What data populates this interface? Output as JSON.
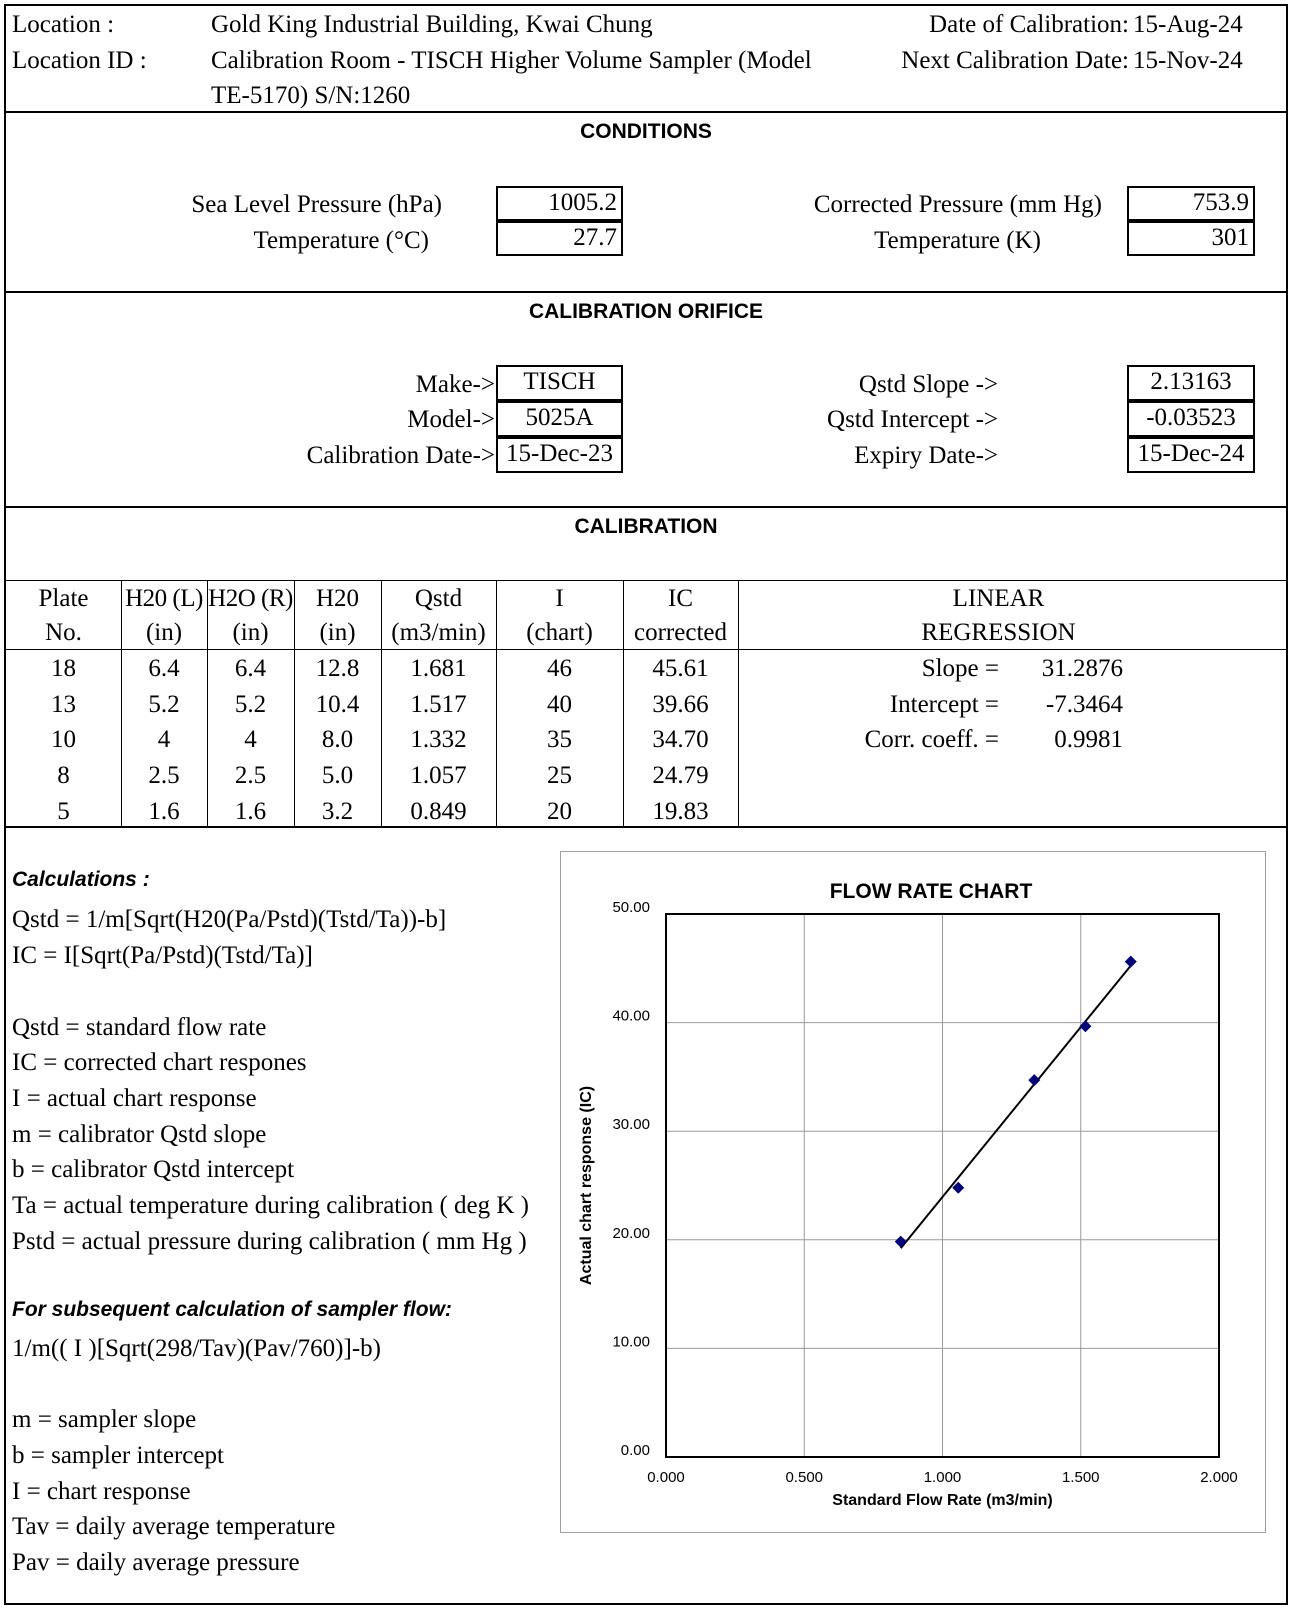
{
  "header": {
    "location_label": "Location :",
    "location_value": "Gold King Industrial Building, Kwai Chung",
    "location_id_label": "Location ID :",
    "location_id_value_line1": "Calibration Room - TISCH Higher Volume Sampler (Model",
    "location_id_value_line2": "TE-5170) S/N:1260",
    "date_label": "Date of Calibration:",
    "date_value": "15-Aug-24",
    "next_label": "Next Calibration Date:",
    "next_value": "15-Nov-24"
  },
  "conditions": {
    "title": "CONDITIONS",
    "slp_label": "Sea Level Pressure (hPa)",
    "slp_value": "1005.2",
    "temp_c_label": "Temperature  (°C)",
    "temp_c_value": "27.7",
    "corr_p_label": "Corrected Pressure (mm Hg)",
    "corr_p_value": "753.9",
    "temp_k_label": "Temperature (K)",
    "temp_k_value": "301"
  },
  "orifice": {
    "title": "CALIBRATION ORIFICE",
    "make_label": "Make->",
    "make_value": "TISCH",
    "model_label": "Model->",
    "model_value": "5025A",
    "cal_date_label": "Calibration Date->",
    "cal_date_value": "15-Dec-23",
    "slope_label": "Qstd Slope ->",
    "slope_value": "2.13163",
    "intercept_label": "Qstd Intercept ->",
    "intercept_value": "-0.03523",
    "expiry_label": "Expiry Date->",
    "expiry_value": "15-Dec-24"
  },
  "calibration": {
    "title": "CALIBRATION",
    "headers": [
      [
        "Plate",
        "No."
      ],
      [
        "H20 (L)",
        "(in)"
      ],
      [
        "H2O (R)",
        "(in)"
      ],
      [
        "H20",
        "(in)"
      ],
      [
        "Qstd",
        "(m3/min)"
      ],
      [
        "I",
        "(chart)"
      ],
      [
        "IC",
        "corrected"
      ]
    ],
    "rows": [
      [
        "18",
        "6.4",
        "6.4",
        "12.8",
        "1.681",
        "46",
        "45.61"
      ],
      [
        "13",
        "5.2",
        "5.2",
        "10.4",
        "1.517",
        "40",
        "39.66"
      ],
      [
        "10",
        "4",
        "4",
        "8.0",
        "1.332",
        "35",
        "34.70"
      ],
      [
        "8",
        "2.5",
        "2.5",
        "5.0",
        "1.057",
        "25",
        "24.79"
      ],
      [
        "5",
        "1.6",
        "1.6",
        "3.2",
        "0.849",
        "20",
        "19.83"
      ]
    ],
    "regression": {
      "header_line1": "LINEAR",
      "header_line2": "REGRESSION",
      "slope_label": "Slope =",
      "slope_value": "31.2876",
      "intercept_label": "Intercept =",
      "intercept_value": "-7.3464",
      "corr_label": "Corr. coeff. =",
      "corr_value": "0.9981"
    }
  },
  "calculations": {
    "heading": "Calculations :",
    "formula_lines": [
      "Qstd = 1/m[Sqrt(H20(Pa/Pstd)(Tstd/Ta))-b]",
      "IC = I[Sqrt(Pa/Pstd)(Tstd/Ta)]"
    ],
    "definitions": [
      "Qstd = standard flow rate",
      "IC = corrected chart respones",
      "I = actual chart response",
      "m = calibrator Qstd slope",
      "b = calibrator Qstd intercept",
      "Ta = actual temperature during calibration ( deg K )",
      "Pstd = actual pressure during calibration ( mm Hg )"
    ],
    "subsequent_heading": "For subsequent calculation of sampler flow:",
    "subsequent_formula": "1/m(( I )[Sqrt(298/Tav)(Pav/760)]-b)",
    "sampler_definitions": [
      "m = sampler slope",
      "b  = sampler intercept",
      "I = chart response",
      "Tav = daily average temperature",
      "Pav = daily average pressure"
    ]
  },
  "chart_data": {
    "type": "scatter",
    "title": "FLOW RATE CHART",
    "xlabel": "Standard Flow Rate (m3/min)",
    "ylabel": "Actual chart response (IC)",
    "xlim": [
      0,
      2
    ],
    "ylim": [
      0,
      50
    ],
    "x_ticks": [
      "0.000",
      "0.500",
      "1.000",
      "1.500",
      "2.000"
    ],
    "y_ticks": [
      "0.00",
      "10.00",
      "20.00",
      "30.00",
      "40.00",
      "50.00"
    ],
    "grid": true,
    "legend": "none",
    "point_color": "#00007a",
    "line_color": "#000000",
    "x": [
      1.681,
      1.517,
      1.332,
      1.057,
      0.849
    ],
    "y": [
      45.61,
      39.66,
      34.7,
      24.79,
      19.83
    ],
    "trendline": {
      "slope": 31.2876,
      "intercept": -7.3464,
      "x_range": [
        0.849,
        1.681
      ]
    }
  }
}
